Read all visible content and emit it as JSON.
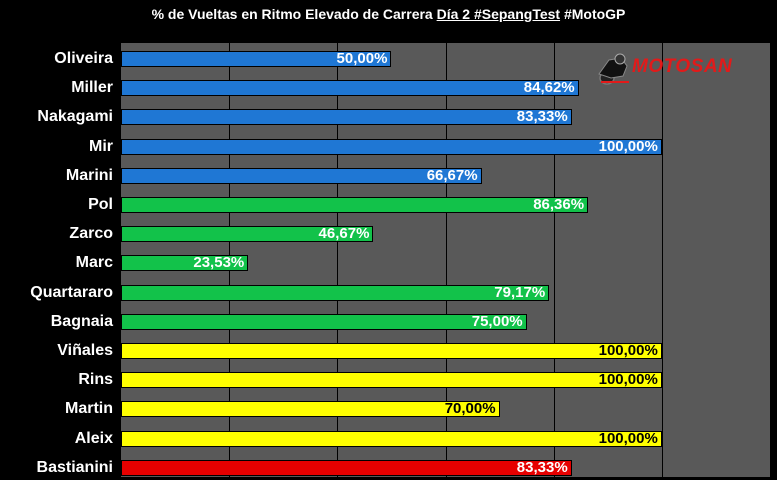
{
  "chart_data": {
    "type": "bar",
    "orientation": "horizontal",
    "title": {
      "prefix": "% de Vueltas en Ritmo Elevado de Carrera ",
      "underlined": "Día 2 #SepangTest",
      "suffix": "  #MotoGP"
    },
    "categories": [
      "Oliveira",
      "Miller",
      "Nakagami",
      "Mir",
      "Marini",
      "Pol",
      "Zarco",
      "Marc",
      "Quartararo",
      "Bagnaia",
      "Viñales",
      "Rins",
      "Martin",
      "Aleix",
      "Bastianini"
    ],
    "values": [
      50.0,
      84.62,
      83.33,
      100.0,
      66.67,
      86.36,
      46.67,
      23.53,
      79.17,
      75.0,
      100.0,
      100.0,
      70.0,
      100.0,
      83.33
    ],
    "value_labels": [
      "50,00%",
      "84,62%",
      "83,33%",
      "100,00%",
      "66,67%",
      "86,36%",
      "46,67%",
      "23,53%",
      "79,17%",
      "75,00%",
      "100,00%",
      "100,00%",
      "70,00%",
      "100,00%",
      "83,33%"
    ],
    "colors": [
      "#1f77d4",
      "#1f77d4",
      "#1f77d4",
      "#1f77d4",
      "#1f77d4",
      "#12c24a",
      "#12c24a",
      "#12c24a",
      "#12c24a",
      "#12c24a",
      "#ffff00",
      "#ffff00",
      "#ffff00",
      "#ffff00",
      "#e60000"
    ],
    "xlim": [
      0,
      120
    ],
    "gridlines_every": 20,
    "grid": true,
    "legend": "none"
  },
  "logo": {
    "text": "MOTOSAN",
    "icon": "motorcycle-rider-icon"
  },
  "colors": {
    "background": "#000000",
    "plot_background": "#595959"
  }
}
